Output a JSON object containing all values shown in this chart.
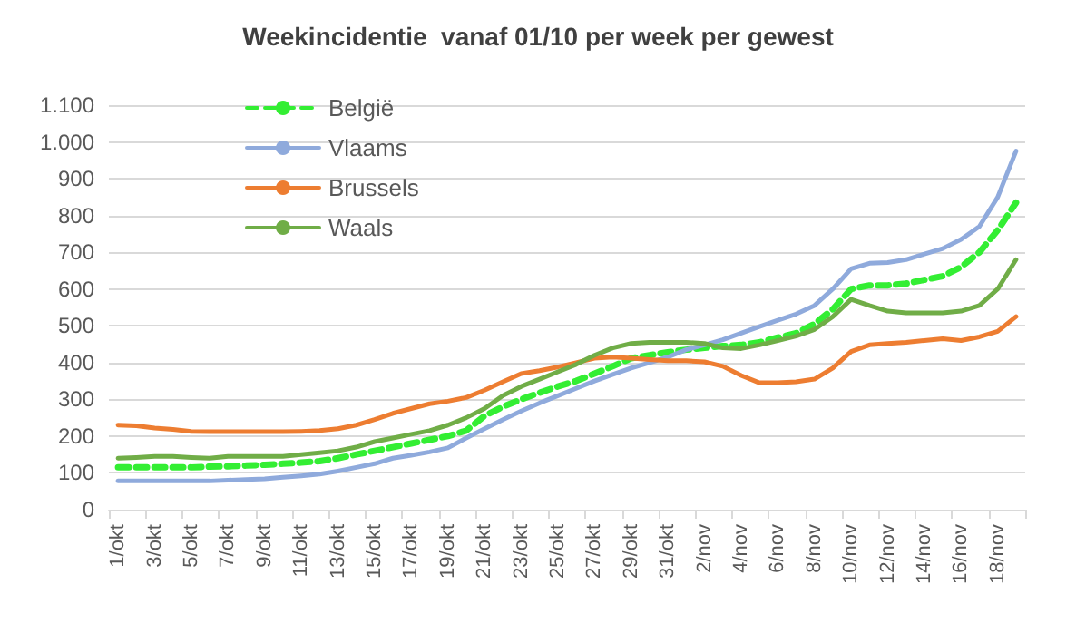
{
  "chart_data": {
    "type": "line",
    "title": "Weekincidentie  vanaf 01/10 per week per gewest",
    "categories": [
      "1/okt",
      null,
      "3/okt",
      null,
      "5/okt",
      null,
      "7/okt",
      null,
      "9/okt",
      null,
      "11/okt",
      null,
      "13/okt",
      null,
      "15/okt",
      null,
      "17/okt",
      null,
      "19/okt",
      null,
      "21/okt",
      null,
      "23/okt",
      null,
      "25/okt",
      null,
      "27/okt",
      null,
      "29/okt",
      null,
      "31/okt",
      null,
      "2/nov",
      null,
      "4/nov",
      null,
      "6/nov",
      null,
      "8/nov",
      null,
      "10/nov",
      null,
      "12/nov",
      null,
      "14/nov",
      null,
      "16/nov",
      null,
      "18/nov",
      null
    ],
    "series": [
      {
        "name": "België",
        "color": "#33ee33",
        "line_style": "dashed",
        "values": [
          115,
          115,
          115,
          115,
          115,
          117,
          118,
          120,
          122,
          125,
          128,
          132,
          140,
          150,
          160,
          170,
          180,
          190,
          200,
          215,
          255,
          280,
          300,
          318,
          335,
          350,
          370,
          390,
          412,
          420,
          428,
          435,
          440,
          445,
          448,
          455,
          468,
          480,
          505,
          545,
          600,
          610,
          610,
          615,
          625,
          635,
          660,
          700,
          760,
          835
        ]
      },
      {
        "name": "Vlaams",
        "color": "#8faadc",
        "line_style": "solid",
        "values": [
          78,
          78,
          78,
          78,
          78,
          78,
          80,
          82,
          84,
          88,
          92,
          97,
          105,
          115,
          125,
          140,
          148,
          157,
          168,
          195,
          220,
          245,
          268,
          290,
          310,
          330,
          350,
          368,
          385,
          400,
          415,
          435,
          448,
          462,
          480,
          498,
          515,
          532,
          555,
          600,
          655,
          670,
          672,
          680,
          695,
          710,
          735,
          770,
          850,
          975
        ]
      },
      {
        "name": "Brussels",
        "color": "#ed7d31",
        "line_style": "solid",
        "values": [
          230,
          228,
          222,
          218,
          213,
          212,
          212,
          212,
          212,
          212,
          213,
          215,
          220,
          230,
          245,
          262,
          275,
          288,
          295,
          305,
          325,
          348,
          370,
          378,
          388,
          400,
          412,
          415,
          412,
          408,
          405,
          405,
          402,
          390,
          365,
          345,
          345,
          348,
          355,
          385,
          430,
          448,
          452,
          455,
          460,
          465,
          460,
          470,
          485,
          525
        ]
      },
      {
        "name": "Waals",
        "color": "#70ad47",
        "line_style": "solid",
        "values": [
          140,
          142,
          145,
          145,
          142,
          140,
          145,
          145,
          145,
          145,
          150,
          155,
          160,
          170,
          185,
          195,
          205,
          215,
          230,
          250,
          275,
          310,
          335,
          355,
          375,
          395,
          420,
          440,
          452,
          455,
          455,
          455,
          452,
          440,
          438,
          448,
          460,
          472,
          490,
          525,
          572,
          555,
          540,
          535,
          535,
          535,
          540,
          555,
          600,
          680
        ]
      }
    ],
    "ylim": [
      0,
      1100
    ],
    "yticks": [
      {
        "value": 0,
        "label": "0"
      },
      {
        "value": 100,
        "label": "100"
      },
      {
        "value": 200,
        "label": "200"
      },
      {
        "value": 300,
        "label": "300"
      },
      {
        "value": 400,
        "label": "400"
      },
      {
        "value": 500,
        "label": "500"
      },
      {
        "value": 600,
        "label": "600"
      },
      {
        "value": 700,
        "label": "700"
      },
      {
        "value": 800,
        "label": "800"
      },
      {
        "value": 900,
        "label": "900"
      },
      {
        "value": 1000,
        "label": "1.000"
      },
      {
        "value": 1100,
        "label": "1.100"
      }
    ],
    "grid": "y",
    "legend": "top left",
    "marker": "none"
  }
}
